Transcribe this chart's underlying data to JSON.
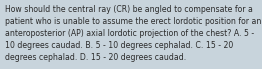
{
  "lines": [
    "How should the central ray (CR) be angled to compensate for a",
    "patient who is unable to assume the erect lordotic position for an",
    "anteroposterior (AP) axial lordotic projection of the chest? A. 5 -",
    "10 degrees caudad. B. 5 - 10 degrees cephalad. C. 15 - 20",
    "degrees cephalad. D. 15 - 20 degrees caudad."
  ],
  "background_color": "#c8d4dc",
  "text_color": "#2b2b2b",
  "font_size": 5.55,
  "fig_width": 2.62,
  "fig_height": 0.69,
  "dpi": 100
}
